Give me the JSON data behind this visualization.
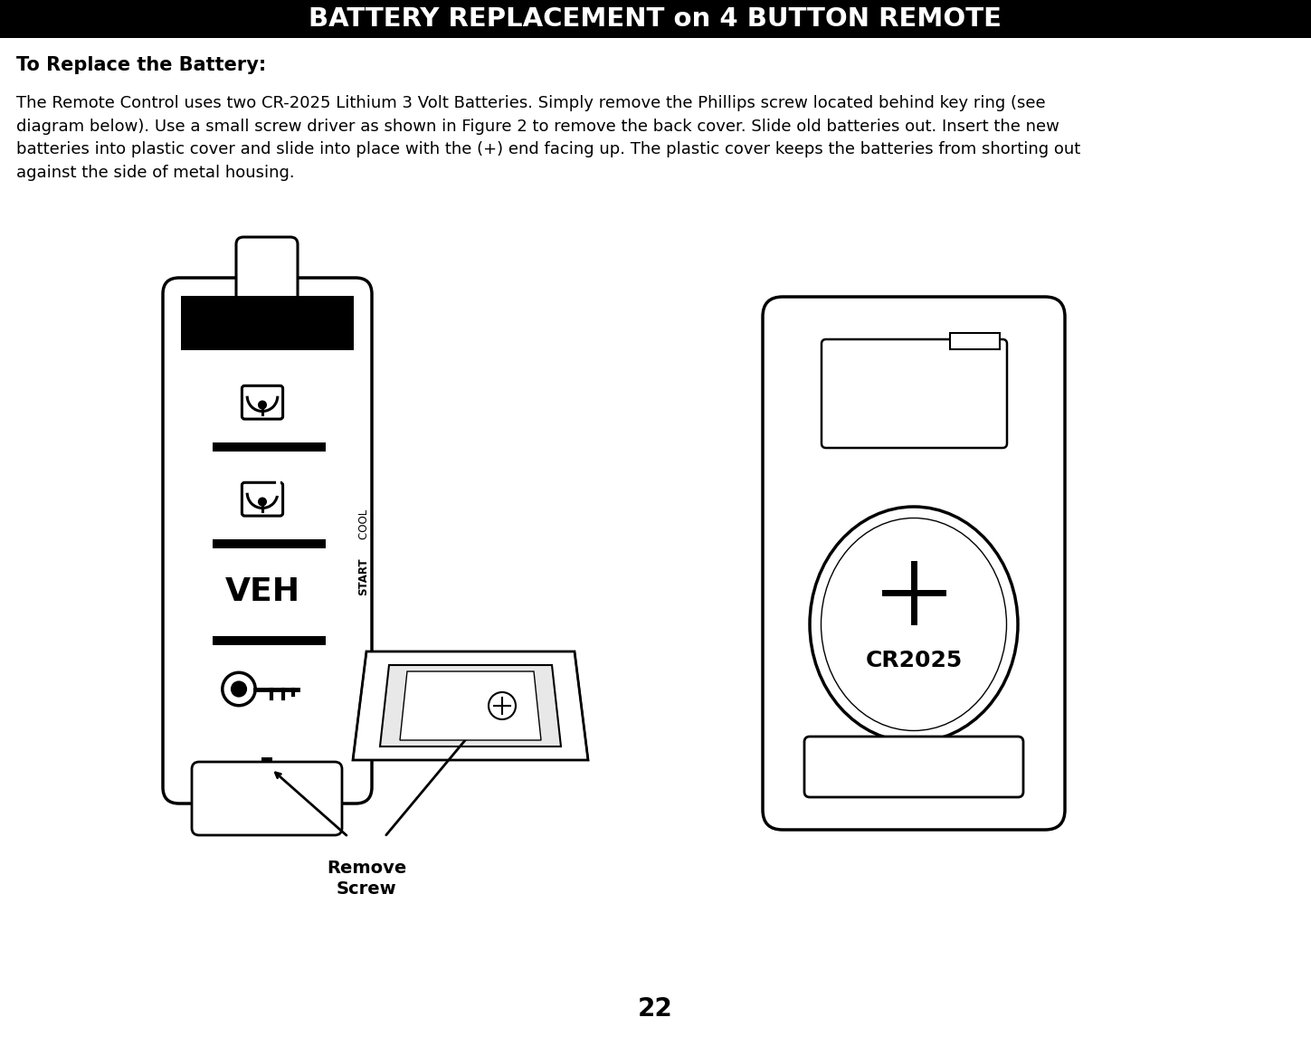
{
  "title": "BATTERY REPLACEMENT on 4 BUTTON REMOTE",
  "title_bg": "#000000",
  "title_color": "#ffffff",
  "subtitle": "To Replace the Battery:",
  "body_text": "The Remote Control uses two CR-2025 Lithium 3 Volt Batteries. Simply remove the Phillips screw located behind key ring (see\ndiagram below). Use a small screw driver as shown in Figure 2 to remove the back cover. Slide old batteries out. Insert the new\nbatteries into plastic cover and slide into place with the (+) end facing up. The plastic cover keeps the batteries from shorting out\nagainst the side of metal housing.",
  "page_number": "22",
  "bg_color": "#ffffff",
  "text_color": "#000000",
  "fig_width": 14.49,
  "fig_height": 11.56
}
